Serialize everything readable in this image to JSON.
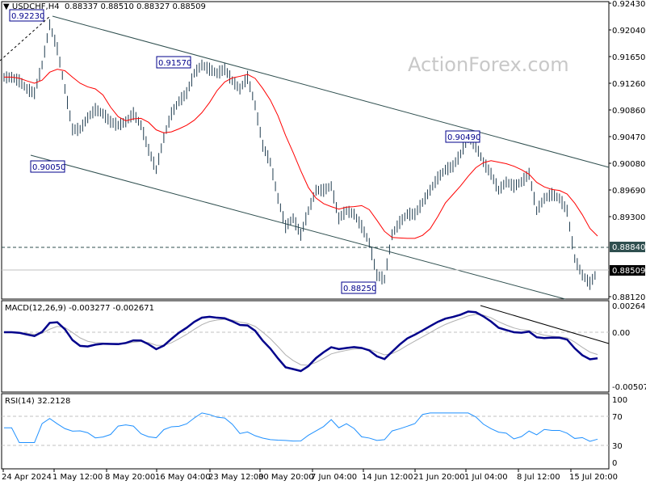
{
  "header": {
    "symbol": "USDCHF,H4",
    "ohlc": "0.88337 0.88510 0.88327 0.88509"
  },
  "watermark": "ActionForex.com",
  "chart_data": [
    {
      "type": "ohlc-bars",
      "title": "USDCHF,H4",
      "y_ticks": [
        "0.92430",
        "0.92040",
        "0.91650",
        "0.91260",
        "0.90860",
        "0.90470",
        "0.90080",
        "0.89690",
        "0.89300",
        "0.88120"
      ],
      "ylim": [
        0.8809,
        0.9246
      ],
      "x_ticks": [
        "24 Apr 2024",
        "1 May 12:00",
        "8 May 20:00",
        "16 May 04:00",
        "23 May 12:00",
        "30 May 20:00",
        "7 Jun 04:00",
        "14 Jun 12:00",
        "21 Jun 20:00",
        "1 Jul 04:00",
        "8 Jul 12:00",
        "15 Jul 20:00"
      ],
      "closes": [
        0.9135,
        0.9135,
        0.913,
        0.9118,
        0.9112,
        0.9153,
        0.9212,
        0.9177,
        0.9118,
        0.9059,
        0.9059,
        0.9076,
        0.9088,
        0.9082,
        0.907,
        0.9065,
        0.907,
        0.9082,
        0.9065,
        0.9029,
        0.9,
        0.9047,
        0.9082,
        0.91,
        0.9112,
        0.9141,
        0.9153,
        0.9147,
        0.9141,
        0.9147,
        0.913,
        0.9118,
        0.9135,
        0.9094,
        0.9035,
        0.9011,
        0.8958,
        0.8917,
        0.8929,
        0.8905,
        0.894,
        0.897,
        0.897,
        0.8976,
        0.8929,
        0.894,
        0.8935,
        0.8917,
        0.8893,
        0.8846,
        0.884,
        0.8905,
        0.8923,
        0.8935,
        0.8935,
        0.8952,
        0.897,
        0.8988,
        0.9,
        0.9005,
        0.9023,
        0.9047,
        0.9035,
        0.9011,
        0.8994,
        0.897,
        0.8982,
        0.8976,
        0.8982,
        0.8994,
        0.894,
        0.8958,
        0.8964,
        0.8958,
        0.894,
        0.887,
        0.8846,
        0.8834,
        0.8851
      ],
      "annotations": [
        "0.92230",
        "0.91570",
        "0.90050",
        "0.90490",
        "0.88250"
      ],
      "levels": {
        "dashed": "0.88840",
        "current": "0.88509"
      },
      "colors": {
        "bars": "#1f3c4f",
        "ma": "#ff0000",
        "trend": "#2f4f4f"
      }
    },
    {
      "type": "line",
      "title": "MACD(12,26,9) -0.003277 -0.002671",
      "y_ticks": [
        "0.00264",
        "0.00",
        "-0.005077"
      ],
      "colors": {
        "macd": "#00008b",
        "signal": "#b0b0b0"
      }
    },
    {
      "type": "line",
      "title": "RSI(14) 32.2128",
      "y_ticks": [
        "100",
        "70",
        "30",
        "0"
      ],
      "ylim": [
        0,
        100
      ],
      "colors": {
        "rsi": "#1e90ff"
      }
    }
  ]
}
